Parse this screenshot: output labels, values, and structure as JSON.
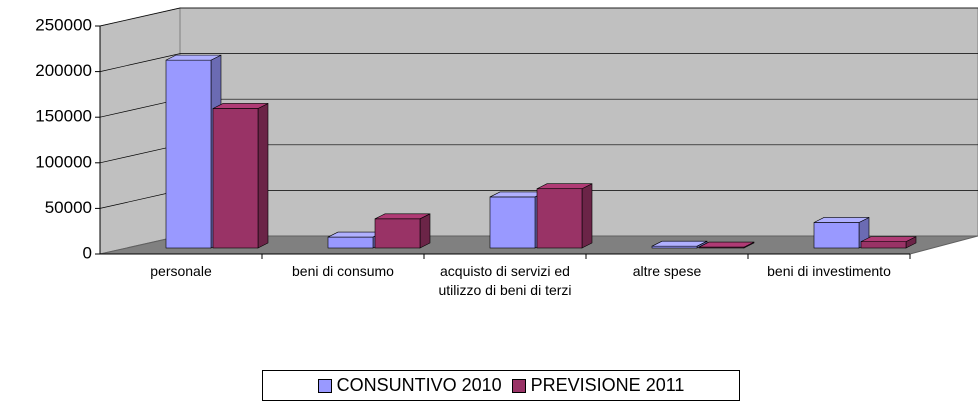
{
  "chart_data": {
    "type": "bar3d",
    "categories": [
      "personale",
      "beni di consumo",
      "acquisto di servizi ed utilizzo di beni di terzi",
      "altre spese",
      "beni di investimento"
    ],
    "series": [
      {
        "name": "CONSUNTIVO 2010",
        "color": "#9999ff",
        "values": [
          206000,
          12000,
          56000,
          2000,
          28000
        ]
      },
      {
        "name": "PREVISIONE 2011",
        "color": "#993366",
        "values": [
          153000,
          32000,
          65000,
          1000,
          7000
        ]
      }
    ],
    "ylim": [
      0,
      250000
    ],
    "yticks": [
      0,
      50000,
      100000,
      150000,
      200000,
      250000
    ],
    "grid": true,
    "legend": "bottom"
  }
}
